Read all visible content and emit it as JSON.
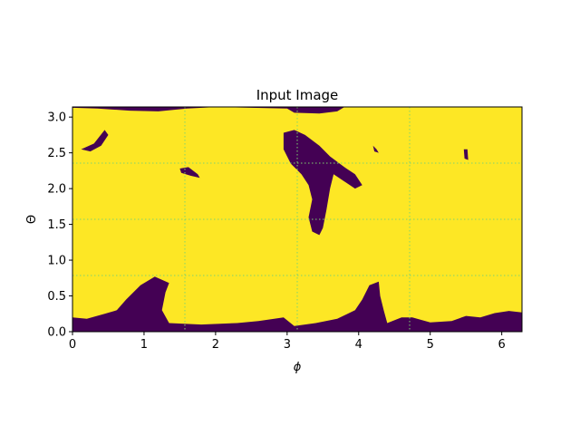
{
  "chart_data": {
    "type": "heatmap",
    "title": "Input Image",
    "xlabel": "ϕ",
    "ylabel": "Θ",
    "xlim": [
      0,
      6.283
    ],
    "ylim": [
      0,
      3.1416
    ],
    "xticks": [
      0,
      1,
      2,
      3,
      4,
      5,
      6
    ],
    "xtick_labels": [
      "0",
      "1",
      "2",
      "3",
      "4",
      "5",
      "6"
    ],
    "yticks": [
      0.0,
      0.5,
      1.0,
      1.5,
      2.0,
      2.5,
      3.0
    ],
    "ytick_labels": [
      "0.0",
      "0.5",
      "1.0",
      "1.5",
      "2.0",
      "2.5",
      "3.0"
    ],
    "grid": {
      "on": true,
      "style": "dotted",
      "x_lines": [
        1.5708,
        3.1416,
        4.7124
      ],
      "y_lines": [
        0.7854,
        1.5708,
        2.3562
      ]
    },
    "colormap": "viridis",
    "background_value_color": "#fde725",
    "region_value_color": "#440154",
    "regions": [
      {
        "name": "bottom-band",
        "points": [
          [
            0,
            0
          ],
          [
            6.283,
            0
          ],
          [
            6.283,
            0.27
          ],
          [
            6.1,
            0.29
          ],
          [
            5.9,
            0.26
          ],
          [
            5.7,
            0.2
          ],
          [
            5.5,
            0.22
          ],
          [
            5.3,
            0.15
          ],
          [
            5.0,
            0.13
          ],
          [
            4.75,
            0.2
          ],
          [
            4.6,
            0.2
          ],
          [
            4.4,
            0.12
          ],
          [
            4.35,
            0.3
          ],
          [
            4.3,
            0.5
          ],
          [
            4.28,
            0.7
          ],
          [
            4.15,
            0.65
          ],
          [
            4.05,
            0.45
          ],
          [
            3.95,
            0.3
          ],
          [
            3.7,
            0.18
          ],
          [
            3.4,
            0.12
          ],
          [
            3.1,
            0.08
          ],
          [
            2.95,
            0.2
          ],
          [
            2.6,
            0.15
          ],
          [
            2.3,
            0.12
          ],
          [
            1.8,
            0.1
          ],
          [
            1.35,
            0.12
          ],
          [
            1.25,
            0.3
          ],
          [
            1.3,
            0.55
          ],
          [
            1.35,
            0.68
          ],
          [
            1.15,
            0.77
          ],
          [
            0.95,
            0.65
          ],
          [
            0.75,
            0.45
          ],
          [
            0.62,
            0.3
          ],
          [
            0.45,
            0.25
          ],
          [
            0.2,
            0.18
          ],
          [
            0,
            0.2
          ]
        ]
      },
      {
        "name": "top-band",
        "points": [
          [
            0,
            3.1416
          ],
          [
            6.283,
            3.1416
          ],
          [
            6.283,
            3.14
          ],
          [
            3.8,
            3.14
          ],
          [
            3.7,
            3.08
          ],
          [
            3.45,
            3.05
          ],
          [
            3.1,
            3.06
          ],
          [
            3.0,
            3.12
          ],
          [
            2.0,
            3.14
          ],
          [
            1.6,
            3.12
          ],
          [
            1.2,
            3.08
          ],
          [
            0.8,
            3.09
          ],
          [
            0.35,
            3.12
          ],
          [
            0,
            3.13
          ]
        ]
      },
      {
        "name": "central-blob",
        "points": [
          [
            2.95,
            2.78
          ],
          [
            3.1,
            2.82
          ],
          [
            3.25,
            2.75
          ],
          [
            3.45,
            2.6
          ],
          [
            3.6,
            2.45
          ],
          [
            3.8,
            2.3
          ],
          [
            3.95,
            2.2
          ],
          [
            4.05,
            2.05
          ],
          [
            3.95,
            2.0
          ],
          [
            3.8,
            2.1
          ],
          [
            3.65,
            2.2
          ],
          [
            3.6,
            2.0
          ],
          [
            3.55,
            1.7
          ],
          [
            3.5,
            1.45
          ],
          [
            3.45,
            1.35
          ],
          [
            3.35,
            1.4
          ],
          [
            3.3,
            1.6
          ],
          [
            3.35,
            1.85
          ],
          [
            3.3,
            2.05
          ],
          [
            3.2,
            2.2
          ],
          [
            3.05,
            2.35
          ],
          [
            2.95,
            2.55
          ]
        ]
      },
      {
        "name": "left-island",
        "points": [
          [
            0.12,
            2.55
          ],
          [
            0.3,
            2.63
          ],
          [
            0.45,
            2.82
          ],
          [
            0.5,
            2.75
          ],
          [
            0.4,
            2.6
          ],
          [
            0.25,
            2.52
          ]
        ]
      },
      {
        "name": "mid-island",
        "points": [
          [
            1.5,
            2.28
          ],
          [
            1.62,
            2.3
          ],
          [
            1.75,
            2.2
          ],
          [
            1.78,
            2.15
          ],
          [
            1.65,
            2.18
          ],
          [
            1.52,
            2.22
          ]
        ]
      },
      {
        "name": "right-island-a",
        "points": [
          [
            5.47,
            2.55
          ],
          [
            5.52,
            2.55
          ],
          [
            5.53,
            2.4
          ],
          [
            5.48,
            2.42
          ]
        ]
      },
      {
        "name": "right-island-b",
        "points": [
          [
            4.2,
            2.6
          ],
          [
            4.25,
            2.55
          ],
          [
            4.28,
            2.5
          ],
          [
            4.22,
            2.52
          ]
        ]
      }
    ]
  }
}
